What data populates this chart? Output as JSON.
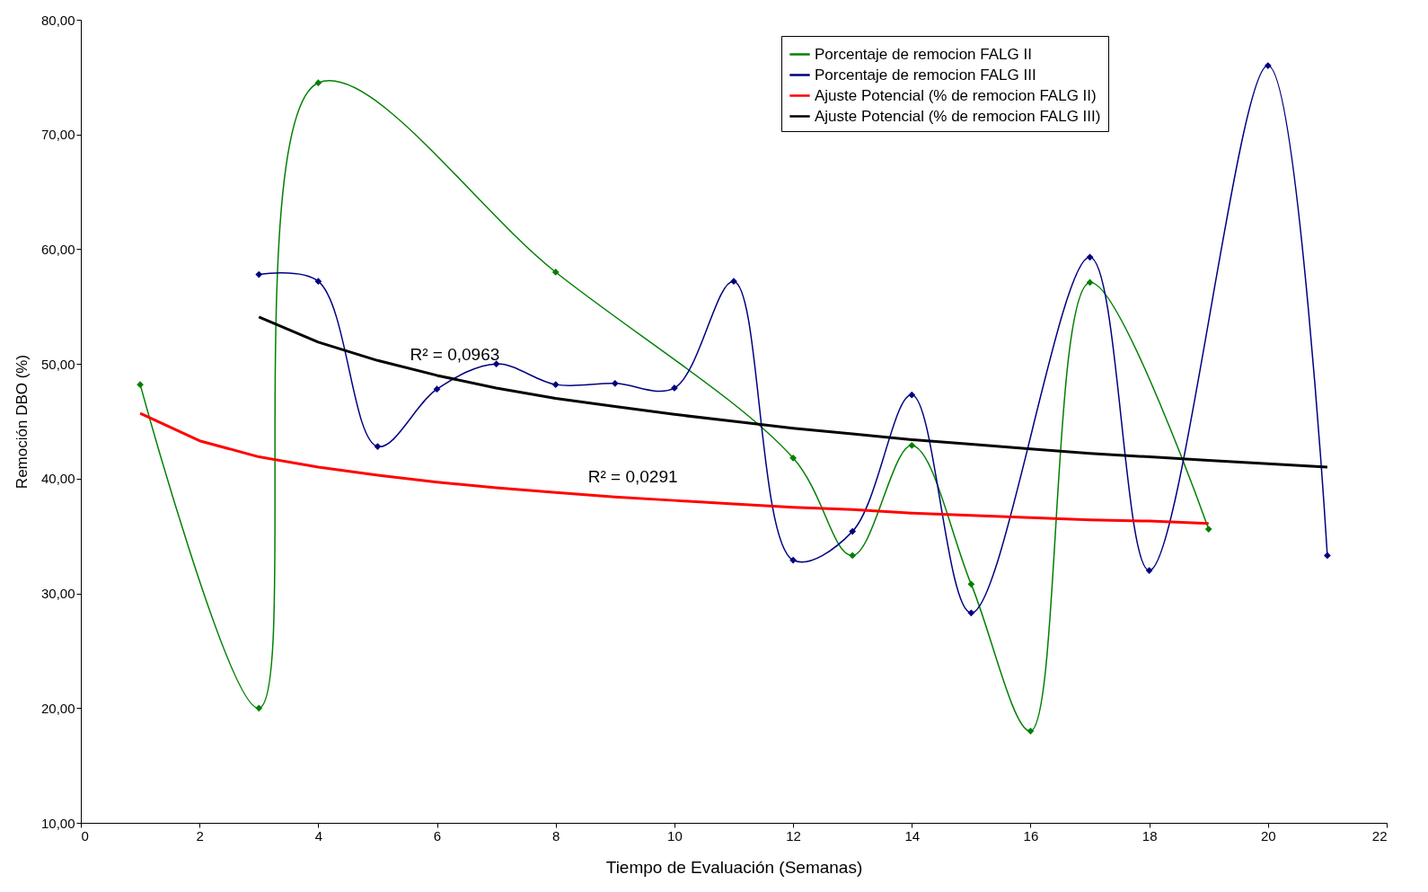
{
  "chart_data": {
    "type": "line",
    "xlabel": "Tiempo de Evaluación  (Semanas)",
    "ylabel": "Remoción DBO (%)",
    "xlim": [
      0,
      22
    ],
    "xticks": [
      0,
      2,
      4,
      6,
      8,
      10,
      12,
      14,
      16,
      18,
      20,
      22
    ],
    "ylim": [
      10,
      80
    ],
    "yticks": [
      {
        "value": 10,
        "label": "10,00"
      },
      {
        "value": 20,
        "label": "20,00"
      },
      {
        "value": 30,
        "label": "30,00"
      },
      {
        "value": 40,
        "label": "40,00"
      },
      {
        "value": 50,
        "label": "50,00"
      },
      {
        "value": 60,
        "label": "60,00"
      },
      {
        "value": 70,
        "label": "70,00"
      },
      {
        "value": 80,
        "label": "80,00"
      }
    ],
    "grid": false,
    "legend": "top right",
    "line_style": "solid",
    "series": [
      {
        "name": "Porcentaje de remocion FALG II",
        "color": "#008000",
        "marker": "diamond",
        "x": [
          1,
          3,
          4,
          8,
          12,
          13,
          14,
          15,
          16,
          17,
          19
        ],
        "values": [
          48.2,
          20.0,
          74.5,
          58.0,
          41.8,
          33.3,
          42.9,
          30.8,
          18.0,
          57.1,
          35.6
        ]
      },
      {
        "name": "Porcentaje de remocion FALG III",
        "color": "#000080",
        "marker": "diamond",
        "x": [
          3,
          4,
          5,
          6,
          7,
          8,
          9,
          10,
          11,
          12,
          13,
          14,
          15,
          17,
          18,
          20,
          21
        ],
        "values": [
          57.8,
          57.2,
          42.8,
          47.8,
          50.0,
          48.2,
          48.3,
          47.9,
          57.2,
          32.9,
          35.4,
          47.3,
          28.3,
          59.3,
          32.0,
          76.0,
          33.3
        ]
      },
      {
        "name": "Ajuste Potencial (% de remocion FALG II)",
        "color": "#ff0000",
        "marker": "none",
        "x": [
          1,
          2,
          3,
          4,
          5,
          6,
          7,
          8,
          9,
          10,
          11,
          12,
          13,
          14,
          15,
          16,
          17,
          18,
          19
        ],
        "values": [
          45.7,
          43.3,
          41.9,
          41.0,
          40.3,
          39.7,
          39.2,
          38.8,
          38.4,
          38.1,
          37.8,
          37.5,
          37.3,
          37.0,
          36.8,
          36.6,
          36.4,
          36.3,
          36.1
        ]
      },
      {
        "name": "Ajuste Potencial (% de remocion FALG III)",
        "color": "#000000",
        "marker": "none",
        "x": [
          3,
          4,
          5,
          6,
          7,
          8,
          9,
          10,
          11,
          12,
          13,
          14,
          15,
          16,
          17,
          18,
          19,
          20,
          21
        ],
        "values": [
          54.1,
          51.9,
          50.3,
          49.0,
          47.9,
          47.0,
          46.3,
          45.6,
          45.0,
          44.4,
          43.9,
          43.4,
          43.0,
          42.6,
          42.2,
          41.9,
          41.6,
          41.3,
          41.0
        ]
      }
    ],
    "annotations": [
      {
        "text": "R² = 0,0963",
        "x": 6.3,
        "y": 48.9
      },
      {
        "text": "R² = 0,0291",
        "x": 9.3,
        "y": 38.3
      }
    ]
  }
}
